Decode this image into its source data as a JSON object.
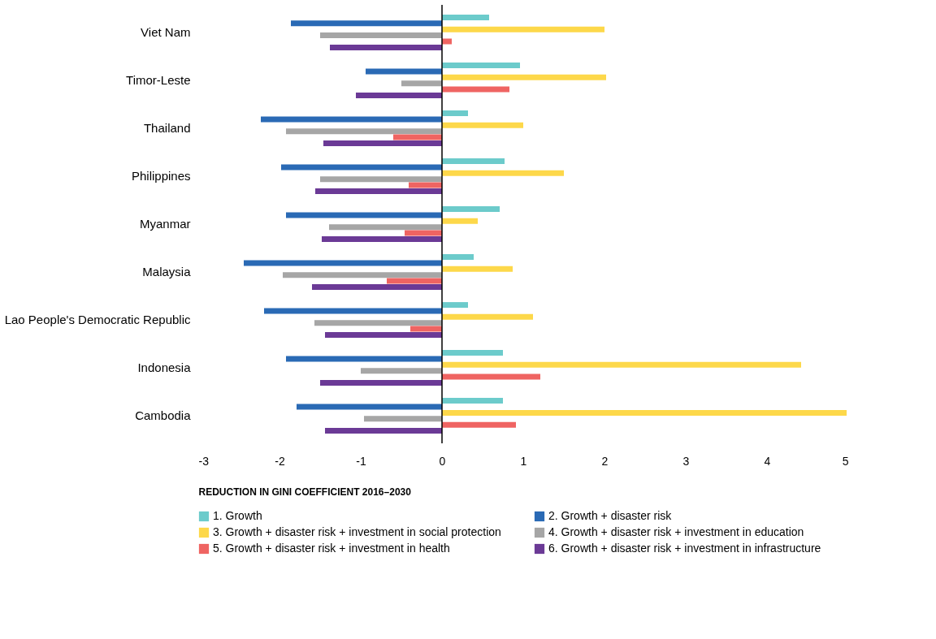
{
  "chart_data": {
    "type": "bar",
    "orientation": "horizontal",
    "xlabel": "REDUCTION IN GINI COEFFICIENT 2016–2030",
    "categories": [
      "Viet Nam",
      "Timor-Leste",
      "Thailand",
      "Philippines",
      "Myanmar",
      "Malaysia",
      "Lao People's Democratic Republic",
      "Indonesia",
      "Cambodia"
    ],
    "series": [
      {
        "name": "1. Growth",
        "color": "#6ccbcb",
        "values": [
          0.58,
          0.96,
          0.32,
          0.77,
          0.71,
          0.39,
          0.32,
          0.75,
          0.75
        ]
      },
      {
        "name": "2. Growth + disaster risk",
        "color": "#2a6ab5",
        "values": [
          -1.86,
          -0.94,
          -2.23,
          -1.98,
          -1.92,
          -2.44,
          -2.19,
          -1.92,
          -1.79
        ]
      },
      {
        "name": "3. Growth + disaster risk + investment in social protection",
        "color": "#fdd84a",
        "values": [
          2.0,
          2.02,
          1.0,
          1.5,
          0.44,
          0.87,
          1.12,
          4.42,
          4.98
        ]
      },
      {
        "name": "4. Growth + disaster risk + investment in education",
        "color": "#a6a6a6",
        "values": [
          -1.5,
          -0.5,
          -1.92,
          -1.5,
          -1.39,
          -1.96,
          -1.57,
          -1.0,
          -0.96
        ]
      },
      {
        "name": "5. Growth + disaster risk + investment in health",
        "color": "#ef6462",
        "values": [
          0.12,
          0.83,
          -0.6,
          -0.41,
          -0.46,
          -0.68,
          -0.39,
          1.21,
          0.91
        ]
      },
      {
        "name": "6. Growth + disaster risk + investment in infrastructure",
        "color": "#6b3a96",
        "values": [
          -1.38,
          -1.06,
          -1.46,
          -1.56,
          -1.48,
          -1.6,
          -1.44,
          -1.5,
          -1.44
        ]
      }
    ],
    "xlim": [
      -3,
      5
    ],
    "xticks": [
      -3,
      -2,
      -1,
      0,
      1,
      2,
      3,
      4,
      5
    ],
    "ref_lines": [
      {
        "axis": "x",
        "value": 0,
        "color": "#000000"
      }
    ],
    "grid": false,
    "legend": "bottom"
  }
}
